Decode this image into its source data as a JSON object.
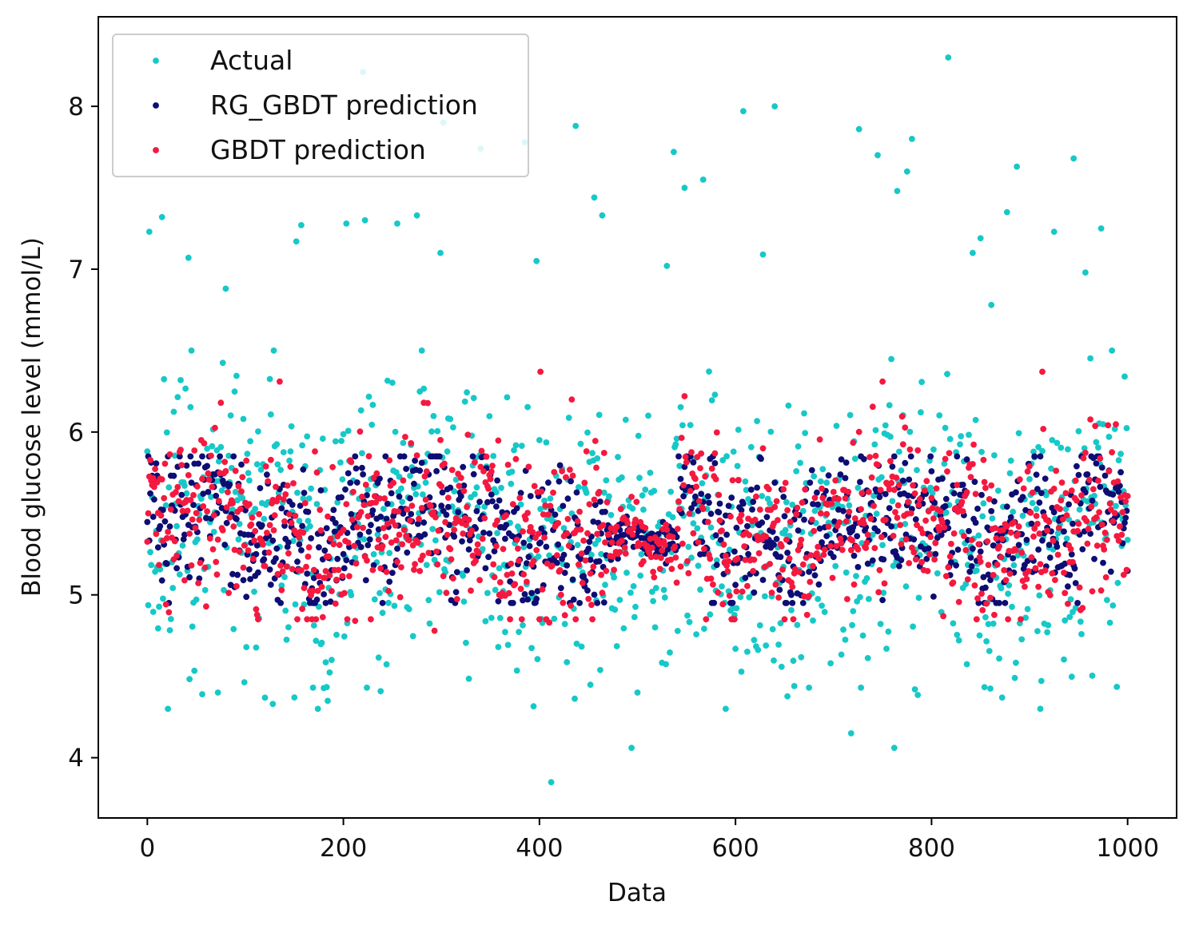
{
  "chart_data": {
    "type": "scatter",
    "title": "",
    "xlabel": "Data",
    "ylabel": "Blood glucose level (mmol/L)",
    "xlim": [
      -50,
      1050
    ],
    "ylim": [
      3.63,
      8.55
    ],
    "xticks": [
      0,
      200,
      400,
      600,
      800,
      1000
    ],
    "yticks": [
      4,
      5,
      6,
      7,
      8
    ],
    "x_tick_labels": [
      "0",
      "200",
      "400",
      "600",
      "800",
      "1000"
    ],
    "y_tick_labels": [
      "4",
      "5",
      "6",
      "7",
      "8"
    ],
    "grid": false,
    "legend_position": "top-left",
    "n_points_per_series": 1001,
    "series": [
      {
        "name": "Actual",
        "color": "#17c8c8",
        "typical_range": [
          4.5,
          6.4
        ],
        "notable_points": [
          {
            "x": 2,
            "y": 7.23
          },
          {
            "x": 15,
            "y": 7.32
          },
          {
            "x": 42,
            "y": 7.07
          },
          {
            "x": 80,
            "y": 6.88
          },
          {
            "x": 152,
            "y": 7.17
          },
          {
            "x": 157,
            "y": 7.27
          },
          {
            "x": 203,
            "y": 7.28
          },
          {
            "x": 220,
            "y": 8.21
          },
          {
            "x": 222,
            "y": 7.3
          },
          {
            "x": 255,
            "y": 7.28
          },
          {
            "x": 275,
            "y": 7.33
          },
          {
            "x": 299,
            "y": 7.1
          },
          {
            "x": 302,
            "y": 7.9
          },
          {
            "x": 340,
            "y": 7.74
          },
          {
            "x": 385,
            "y": 7.78
          },
          {
            "x": 397,
            "y": 7.05
          },
          {
            "x": 412,
            "y": 3.85
          },
          {
            "x": 437,
            "y": 7.88
          },
          {
            "x": 456,
            "y": 7.44
          },
          {
            "x": 464,
            "y": 7.33
          },
          {
            "x": 494,
            "y": 4.06
          },
          {
            "x": 530,
            "y": 7.02
          },
          {
            "x": 537,
            "y": 7.72
          },
          {
            "x": 548,
            "y": 7.5
          },
          {
            "x": 567,
            "y": 7.55
          },
          {
            "x": 608,
            "y": 7.97
          },
          {
            "x": 640,
            "y": 8.0
          },
          {
            "x": 628,
            "y": 7.09
          },
          {
            "x": 718,
            "y": 4.15
          },
          {
            "x": 726,
            "y": 7.86
          },
          {
            "x": 745,
            "y": 7.7
          },
          {
            "x": 762,
            "y": 4.06
          },
          {
            "x": 765,
            "y": 7.48
          },
          {
            "x": 775,
            "y": 7.6
          },
          {
            "x": 780,
            "y": 7.8
          },
          {
            "x": 817,
            "y": 8.3
          },
          {
            "x": 842,
            "y": 7.1
          },
          {
            "x": 850,
            "y": 7.19
          },
          {
            "x": 861,
            "y": 6.78
          },
          {
            "x": 877,
            "y": 7.35
          },
          {
            "x": 887,
            "y": 7.63
          },
          {
            "x": 925,
            "y": 7.23
          },
          {
            "x": 945,
            "y": 7.68
          },
          {
            "x": 957,
            "y": 6.98
          },
          {
            "x": 973,
            "y": 7.25
          },
          {
            "x": 128,
            "y": 4.33
          },
          {
            "x": 150,
            "y": 4.37
          },
          {
            "x": 56,
            "y": 4.39
          },
          {
            "x": 72,
            "y": 4.4
          },
          {
            "x": 224,
            "y": 4.43
          },
          {
            "x": 500,
            "y": 4.4
          },
          {
            "x": 660,
            "y": 4.44
          },
          {
            "x": 728,
            "y": 4.43
          },
          {
            "x": 885,
            "y": 4.49
          }
        ]
      },
      {
        "name": "RG_GBDT prediction",
        "color": "#0d0d73",
        "typical_range": [
          4.95,
          5.85
        ]
      },
      {
        "name": "GBDT prediction",
        "color": "#f5183f",
        "typical_range": [
          4.8,
          6.38
        ],
        "notable_points": [
          {
            "x": 135,
            "y": 6.31
          },
          {
            "x": 401,
            "y": 6.37
          },
          {
            "x": 433,
            "y": 6.2
          },
          {
            "x": 548,
            "y": 6.22
          },
          {
            "x": 750,
            "y": 6.31
          },
          {
            "x": 913,
            "y": 6.37
          },
          {
            "x": 212,
            "y": 4.84
          },
          {
            "x": 410,
            "y": 4.83
          },
          {
            "x": 293,
            "y": 4.78
          }
        ]
      }
    ]
  }
}
